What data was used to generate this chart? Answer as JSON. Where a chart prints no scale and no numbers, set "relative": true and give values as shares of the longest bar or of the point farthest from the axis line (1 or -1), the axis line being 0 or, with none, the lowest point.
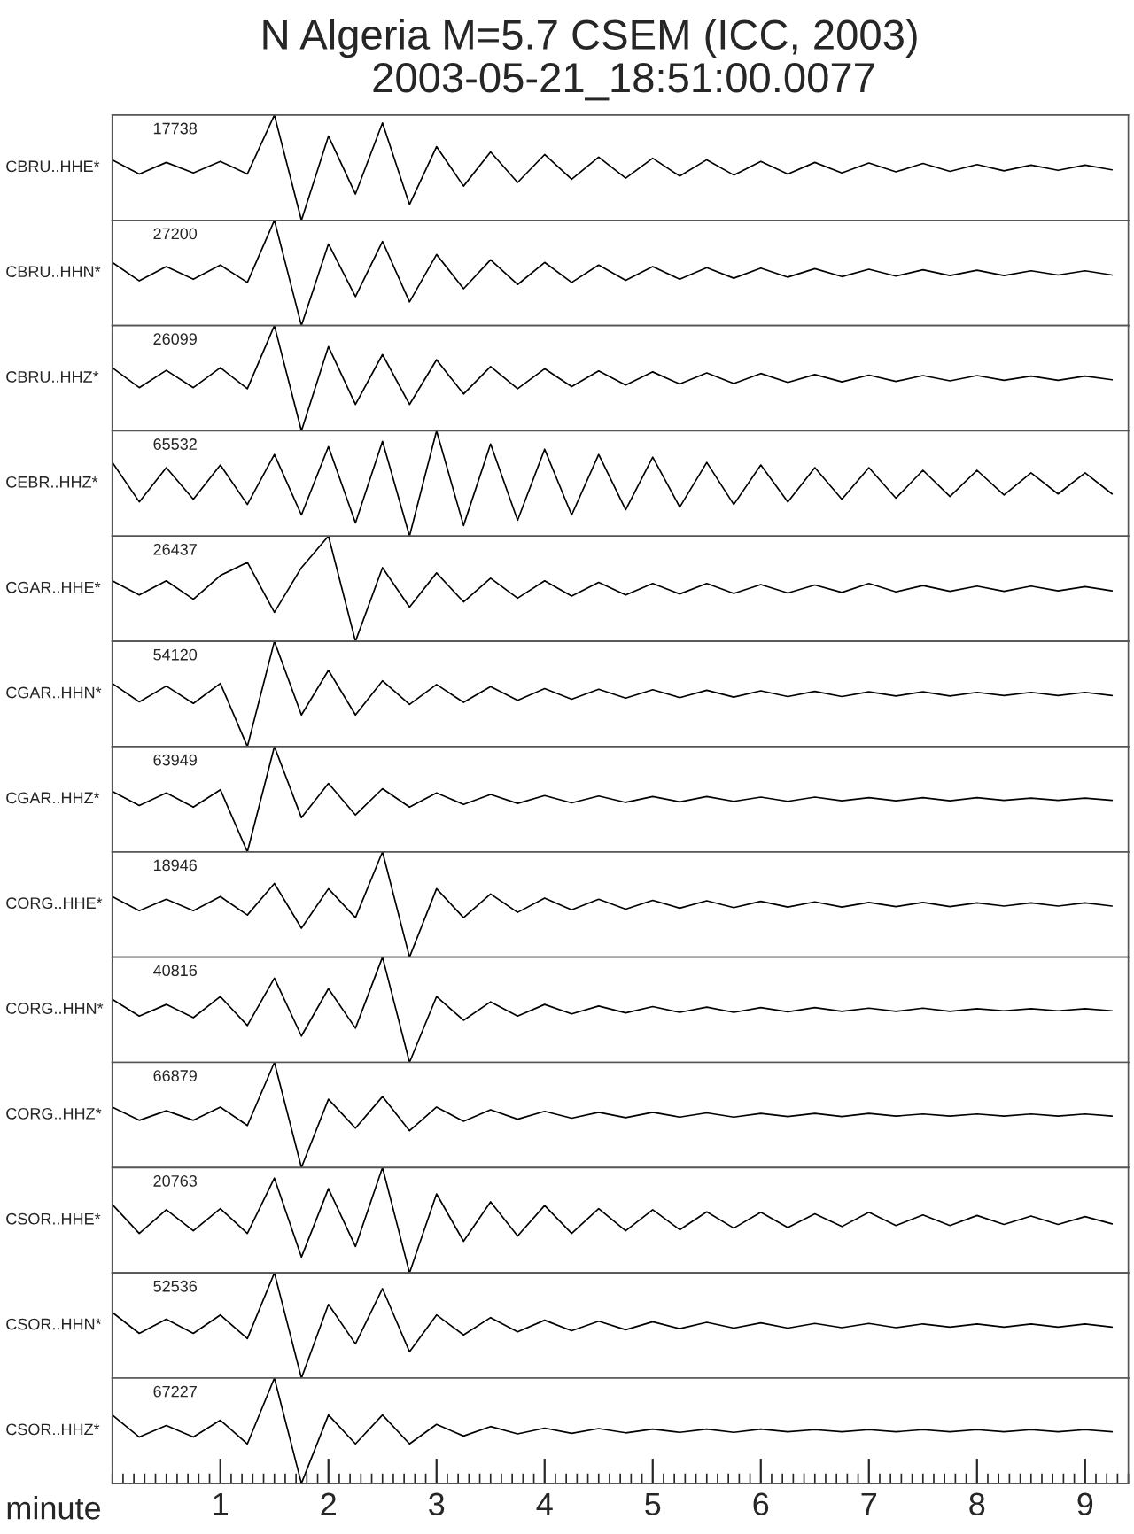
{
  "chart_data": [
    {
      "type": "line",
      "relative": true,
      "title": "N Algeria M=5.7 CSEM (ICC, 2003)",
      "subtitle": "2003-05-21_18:51:00.0077",
      "ylabel": "CBRU..HHE*",
      "annotations": [
        "17738"
      ],
      "xlim": [
        0,
        9.4
      ],
      "tick_labels": false,
      "color": "#000000",
      "x": [
        0,
        0.25,
        0.5,
        0.75,
        1,
        1.25,
        1.5,
        1.75,
        2,
        2.25,
        2.5,
        2.75,
        3,
        3.25,
        3.5,
        3.75,
        4,
        4.25,
        4.5,
        4.75,
        5,
        5.25,
        5.5,
        5.75,
        6,
        6.25,
        6.5,
        6.75,
        7,
        7.25,
        7.5,
        7.75,
        8,
        8.25,
        8.5,
        8.75,
        9,
        9.25
      ],
      "values": [
        0.575,
        0.44,
        0.55,
        0.45,
        0.56,
        0.44,
        1,
        0,
        0.8,
        0.25,
        0.925,
        0.15,
        0.7,
        0.325,
        0.65,
        0.36,
        0.625,
        0.39,
        0.6,
        0.4,
        0.59,
        0.42,
        0.575,
        0.43,
        0.56,
        0.44,
        0.55,
        0.45,
        0.545,
        0.46,
        0.54,
        0.465,
        0.53,
        0.47,
        0.525,
        0.475,
        0.525,
        0.48
      ]
    },
    {
      "type": "line",
      "relative": true,
      "ylabel": "CBRU..HHN*",
      "annotations": [
        "27200"
      ],
      "xlim": [
        0,
        9.4
      ],
      "tick_labels": false,
      "color": "#000000",
      "x": [
        0,
        0.25,
        0.5,
        0.75,
        1,
        1.25,
        1.5,
        1.75,
        2,
        2.25,
        2.5,
        2.75,
        3,
        3.25,
        3.5,
        3.75,
        4,
        4.25,
        4.5,
        4.75,
        5,
        5.25,
        5.5,
        5.75,
        6,
        6.25,
        6.5,
        6.75,
        7,
        7.25,
        7.5,
        7.75,
        8,
        8.25,
        8.5,
        8.75,
        9,
        9.25
      ],
      "values": [
        0.6,
        0.425,
        0.56,
        0.44,
        0.575,
        0.41,
        1,
        0,
        0.775,
        0.275,
        0.8,
        0.225,
        0.675,
        0.35,
        0.625,
        0.39,
        0.6,
        0.41,
        0.575,
        0.43,
        0.56,
        0.44,
        0.55,
        0.45,
        0.545,
        0.46,
        0.54,
        0.465,
        0.535,
        0.47,
        0.53,
        0.475,
        0.525,
        0.475,
        0.52,
        0.48,
        0.52,
        0.48
      ]
    },
    {
      "type": "line",
      "relative": true,
      "ylabel": "CBRU..HHZ*",
      "annotations": [
        "26099"
      ],
      "xlim": [
        0,
        9.4
      ],
      "tick_labels": false,
      "color": "#000000",
      "x": [
        0,
        0.25,
        0.5,
        0.75,
        1,
        1.25,
        1.5,
        1.75,
        2,
        2.25,
        2.5,
        2.75,
        3,
        3.25,
        3.5,
        3.75,
        4,
        4.25,
        4.5,
        4.75,
        5,
        5.25,
        5.5,
        5.75,
        6,
        6.25,
        6.5,
        6.75,
        7,
        7.25,
        7.5,
        7.75,
        8,
        8.25,
        8.5,
        8.75,
        9,
        9.25
      ],
      "values": [
        0.6,
        0.41,
        0.575,
        0.41,
        0.6,
        0.4,
        1,
        0,
        0.8,
        0.25,
        0.725,
        0.25,
        0.675,
        0.35,
        0.61,
        0.4,
        0.59,
        0.42,
        0.57,
        0.435,
        0.56,
        0.445,
        0.55,
        0.45,
        0.545,
        0.46,
        0.535,
        0.465,
        0.53,
        0.47,
        0.525,
        0.475,
        0.525,
        0.48,
        0.52,
        0.48,
        0.52,
        0.485
      ]
    },
    {
      "type": "line",
      "relative": true,
      "ylabel": "CEBR..HHZ*",
      "annotations": [
        "65532"
      ],
      "xlim": [
        0,
        9.4
      ],
      "tick_labels": false,
      "color": "#000000",
      "x": [
        0,
        0.25,
        0.5,
        0.75,
        1,
        1.25,
        1.5,
        1.75,
        2,
        2.25,
        2.5,
        2.75,
        3,
        3.25,
        3.5,
        3.75,
        4,
        4.25,
        4.5,
        4.75,
        5,
        5.25,
        5.5,
        5.75,
        6,
        6.25,
        6.5,
        6.75,
        7,
        7.25,
        7.5,
        7.75,
        8,
        8.25,
        8.5,
        8.75,
        9,
        9.25
      ],
      "values": [
        0.7,
        0.325,
        0.65,
        0.35,
        0.675,
        0.3,
        0.775,
        0.2,
        0.85,
        0.125,
        0.9,
        0,
        1,
        0.1,
        0.875,
        0.15,
        0.825,
        0.2,
        0.775,
        0.25,
        0.75,
        0.275,
        0.7,
        0.3,
        0.675,
        0.325,
        0.65,
        0.35,
        0.65,
        0.36,
        0.625,
        0.375,
        0.625,
        0.39,
        0.6,
        0.4,
        0.6,
        0.4
      ]
    },
    {
      "type": "line",
      "relative": true,
      "ylabel": "CGAR..HHE*",
      "annotations": [
        "26437"
      ],
      "xlim": [
        0,
        9.4
      ],
      "tick_labels": false,
      "color": "#000000",
      "x": [
        0,
        0.25,
        0.5,
        0.75,
        1,
        1.25,
        1.5,
        1.75,
        2,
        2.25,
        2.5,
        2.75,
        3,
        3.25,
        3.5,
        3.75,
        4,
        4.25,
        4.5,
        4.75,
        5,
        5.25,
        5.5,
        5.75,
        6,
        6.25,
        6.5,
        6.75,
        7,
        7.25,
        7.5,
        7.75,
        8,
        8.25,
        8.5,
        8.75,
        9,
        9.25
      ],
      "values": [
        0.575,
        0.44,
        0.575,
        0.4,
        0.625,
        0.75,
        0.275,
        0.7,
        1,
        0,
        0.7,
        0.325,
        0.65,
        0.375,
        0.6,
        0.41,
        0.575,
        0.43,
        0.56,
        0.44,
        0.55,
        0.45,
        0.55,
        0.455,
        0.54,
        0.46,
        0.535,
        0.465,
        0.55,
        0.47,
        0.53,
        0.475,
        0.525,
        0.475,
        0.525,
        0.48,
        0.52,
        0.48
      ]
    },
    {
      "type": "line",
      "relative": true,
      "ylabel": "CGAR..HHN*",
      "annotations": [
        "54120"
      ],
      "xlim": [
        0,
        9.4
      ],
      "tick_labels": false,
      "color": "#000000",
      "x": [
        0,
        0.25,
        0.5,
        0.75,
        1,
        1.25,
        1.5,
        1.75,
        2,
        2.25,
        2.5,
        2.75,
        3,
        3.25,
        3.5,
        3.75,
        4,
        4.25,
        4.5,
        4.75,
        5,
        5.25,
        5.5,
        5.75,
        6,
        6.25,
        6.5,
        6.75,
        7,
        7.25,
        7.5,
        7.75,
        8,
        8.25,
        8.5,
        8.75,
        9,
        9.25
      ],
      "values": [
        0.6,
        0.425,
        0.575,
        0.41,
        0.6,
        0,
        1,
        0.3,
        0.725,
        0.3,
        0.625,
        0.4,
        0.59,
        0.42,
        0.57,
        0.44,
        0.55,
        0.45,
        0.545,
        0.46,
        0.54,
        0.465,
        0.535,
        0.47,
        0.53,
        0.475,
        0.525,
        0.475,
        0.52,
        0.48,
        0.52,
        0.48,
        0.515,
        0.485,
        0.515,
        0.485,
        0.515,
        0.485
      ]
    },
    {
      "type": "line",
      "relative": true,
      "ylabel": "CGAR..HHZ*",
      "annotations": [
        "63949"
      ],
      "xlim": [
        0,
        9.4
      ],
      "tick_labels": false,
      "color": "#000000",
      "x": [
        0,
        0.25,
        0.5,
        0.75,
        1,
        1.25,
        1.5,
        1.75,
        2,
        2.25,
        2.5,
        2.75,
        3,
        3.25,
        3.5,
        3.75,
        4,
        4.25,
        4.5,
        4.75,
        5,
        5.25,
        5.5,
        5.75,
        6,
        6.25,
        6.5,
        6.75,
        7,
        7.25,
        7.5,
        7.75,
        8,
        8.25,
        8.5,
        8.75,
        9,
        9.25
      ],
      "values": [
        0.575,
        0.44,
        0.56,
        0.425,
        0.59,
        0,
        1,
        0.325,
        0.65,
        0.35,
        0.6,
        0.425,
        0.56,
        0.45,
        0.545,
        0.46,
        0.535,
        0.465,
        0.53,
        0.47,
        0.525,
        0.475,
        0.525,
        0.48,
        0.52,
        0.48,
        0.52,
        0.485,
        0.515,
        0.485,
        0.515,
        0.485,
        0.515,
        0.49,
        0.51,
        0.49,
        0.51,
        0.49
      ]
    },
    {
      "type": "line",
      "relative": true,
      "ylabel": "CORG..HHE*",
      "annotations": [
        "18946"
      ],
      "xlim": [
        0,
        9.4
      ],
      "tick_labels": false,
      "color": "#000000",
      "x": [
        0,
        0.25,
        0.5,
        0.75,
        1,
        1.25,
        1.5,
        1.75,
        2,
        2.25,
        2.5,
        2.75,
        3,
        3.25,
        3.5,
        3.75,
        4,
        4.25,
        4.5,
        4.75,
        5,
        5.25,
        5.5,
        5.75,
        6,
        6.25,
        6.5,
        6.75,
        7,
        7.25,
        7.5,
        7.75,
        8,
        8.25,
        8.5,
        8.75,
        9,
        9.25
      ],
      "values": [
        0.575,
        0.44,
        0.55,
        0.44,
        0.575,
        0.4,
        0.7,
        0.275,
        0.65,
        0.375,
        1,
        0,
        0.65,
        0.375,
        0.6,
        0.425,
        0.56,
        0.45,
        0.55,
        0.455,
        0.54,
        0.465,
        0.535,
        0.47,
        0.53,
        0.475,
        0.525,
        0.475,
        0.52,
        0.48,
        0.52,
        0.48,
        0.515,
        0.485,
        0.515,
        0.485,
        0.515,
        0.485
      ]
    },
    {
      "type": "line",
      "relative": true,
      "ylabel": "CORG..HHN*",
      "annotations": [
        "40816"
      ],
      "xlim": [
        0,
        9.4
      ],
      "tick_labels": false,
      "color": "#000000",
      "x": [
        0,
        0.25,
        0.5,
        0.75,
        1,
        1.25,
        1.5,
        1.75,
        2,
        2.25,
        2.5,
        2.75,
        3,
        3.25,
        3.5,
        3.75,
        4,
        4.25,
        4.5,
        4.75,
        5,
        5.25,
        5.5,
        5.75,
        6,
        6.25,
        6.5,
        6.75,
        7,
        7.25,
        7.5,
        7.75,
        8,
        8.25,
        8.5,
        8.75,
        9,
        9.25
      ],
      "values": [
        0.6,
        0.44,
        0.55,
        0.425,
        0.625,
        0.35,
        0.8,
        0.25,
        0.7,
        0.325,
        1,
        0,
        0.625,
        0.4,
        0.575,
        0.44,
        0.55,
        0.46,
        0.535,
        0.47,
        0.53,
        0.475,
        0.525,
        0.475,
        0.52,
        0.48,
        0.52,
        0.485,
        0.515,
        0.485,
        0.515,
        0.485,
        0.51,
        0.49,
        0.51,
        0.49,
        0.51,
        0.49
      ]
    },
    {
      "type": "line",
      "relative": true,
      "ylabel": "CORG..HHZ*",
      "annotations": [
        "66879"
      ],
      "xlim": [
        0,
        9.4
      ],
      "tick_labels": false,
      "color": "#000000",
      "x": [
        0,
        0.25,
        0.5,
        0.75,
        1,
        1.25,
        1.5,
        1.75,
        2,
        2.25,
        2.5,
        2.75,
        3,
        3.25,
        3.5,
        3.75,
        4,
        4.25,
        4.5,
        4.75,
        5,
        5.25,
        5.5,
        5.75,
        6,
        6.25,
        6.5,
        6.75,
        7,
        7.25,
        7.5,
        7.75,
        8,
        8.25,
        8.5,
        8.75,
        9,
        9.25
      ],
      "values": [
        0.575,
        0.45,
        0.54,
        0.45,
        0.575,
        0.4,
        1,
        0,
        0.65,
        0.375,
        0.675,
        0.35,
        0.575,
        0.44,
        0.55,
        0.46,
        0.535,
        0.47,
        0.525,
        0.475,
        0.525,
        0.48,
        0.52,
        0.48,
        0.515,
        0.485,
        0.515,
        0.485,
        0.515,
        0.49,
        0.51,
        0.49,
        0.51,
        0.49,
        0.51,
        0.49,
        0.51,
        0.49
      ]
    },
    {
      "type": "line",
      "relative": true,
      "ylabel": "CSOR..HHE*",
      "annotations": [
        "20763"
      ],
      "xlim": [
        0,
        9.4
      ],
      "tick_labels": false,
      "color": "#000000",
      "x": [
        0,
        0.25,
        0.5,
        0.75,
        1,
        1.25,
        1.5,
        1.75,
        2,
        2.25,
        2.5,
        2.75,
        3,
        3.25,
        3.5,
        3.75,
        4,
        4.25,
        4.5,
        4.75,
        5,
        5.25,
        5.5,
        5.75,
        6,
        6.25,
        6.5,
        6.75,
        7,
        7.25,
        7.5,
        7.75,
        8,
        8.25,
        8.5,
        8.75,
        9,
        9.25
      ],
      "values": [
        0.65,
        0.375,
        0.6,
        0.4,
        0.61,
        0.375,
        0.9,
        0.15,
        0.8,
        0.25,
        1,
        0,
        0.75,
        0.3,
        0.675,
        0.35,
        0.64,
        0.375,
        0.61,
        0.4,
        0.6,
        0.41,
        0.58,
        0.425,
        0.575,
        0.43,
        0.56,
        0.44,
        0.575,
        0.45,
        0.55,
        0.45,
        0.545,
        0.46,
        0.54,
        0.46,
        0.535,
        0.465
      ]
    },
    {
      "type": "line",
      "relative": true,
      "ylabel": "CSOR..HHN*",
      "annotations": [
        "52536"
      ],
      "xlim": [
        0,
        9.4
      ],
      "tick_labels": false,
      "color": "#000000",
      "x": [
        0,
        0.25,
        0.5,
        0.75,
        1,
        1.25,
        1.5,
        1.75,
        2,
        2.25,
        2.5,
        2.75,
        3,
        3.25,
        3.5,
        3.75,
        4,
        4.25,
        4.5,
        4.75,
        5,
        5.25,
        5.5,
        5.75,
        6,
        6.25,
        6.5,
        6.75,
        7,
        7.25,
        7.5,
        7.75,
        8,
        8.25,
        8.5,
        8.75,
        9,
        9.25
      ],
      "values": [
        0.625,
        0.425,
        0.56,
        0.425,
        0.6,
        0.375,
        1,
        0,
        0.7,
        0.325,
        0.85,
        0.25,
        0.6,
        0.41,
        0.575,
        0.44,
        0.55,
        0.45,
        0.54,
        0.46,
        0.535,
        0.47,
        0.53,
        0.475,
        0.525,
        0.475,
        0.52,
        0.48,
        0.52,
        0.48,
        0.515,
        0.485,
        0.515,
        0.485,
        0.515,
        0.485,
        0.515,
        0.485
      ]
    },
    {
      "type": "line",
      "relative": true,
      "ylabel": "CSOR..HHZ*",
      "annotations": [
        "67227"
      ],
      "xlim": [
        0,
        9.4
      ],
      "xticks": [
        1,
        2,
        3,
        4,
        5,
        6,
        7,
        8,
        9
      ],
      "xlabel": "minute",
      "tick_labels": "x",
      "color": "#000000",
      "x": [
        0,
        0.25,
        0.5,
        0.75,
        1,
        1.25,
        1.5,
        1.75,
        2,
        2.25,
        2.5,
        2.75,
        3,
        3.25,
        3.5,
        3.75,
        4,
        4.25,
        4.5,
        4.75,
        5,
        5.25,
        5.5,
        5.75,
        6,
        6.25,
        6.5,
        6.75,
        7,
        7.25,
        7.5,
        7.75,
        8,
        8.25,
        8.5,
        8.75,
        9,
        9.25
      ],
      "values": [
        0.65,
        0.44,
        0.55,
        0.44,
        0.6,
        0.375,
        1,
        0,
        0.65,
        0.375,
        0.65,
        0.375,
        0.56,
        0.45,
        0.54,
        0.47,
        0.525,
        0.475,
        0.52,
        0.48,
        0.515,
        0.485,
        0.515,
        0.485,
        0.515,
        0.49,
        0.51,
        0.49,
        0.51,
        0.49,
        0.51,
        0.49,
        0.51,
        0.49,
        0.51,
        0.49,
        0.51,
        0.49
      ]
    }
  ]
}
